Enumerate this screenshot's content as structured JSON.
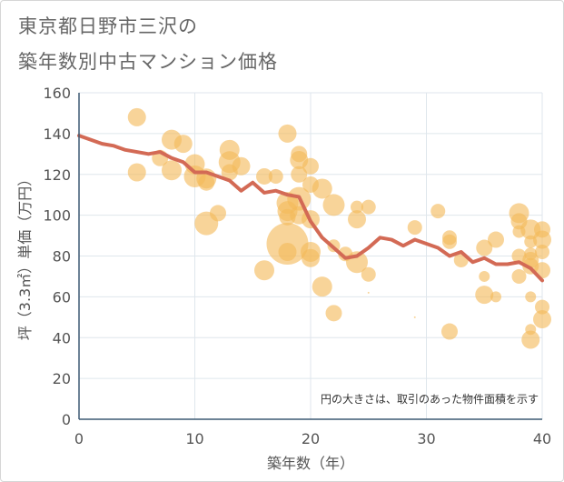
{
  "title_lines": [
    "東京都日野市三沢の",
    "築年数別中古マンション価格"
  ],
  "chart_data": {
    "type": "scatter",
    "title": "東京都日野市三沢の築年数別中古マンション価格",
    "xlabel": "築年数（年）",
    "ylabel": "坪（3.3㎡）単価（万円）",
    "xlim": [
      0,
      40
    ],
    "ylim": [
      0,
      160
    ],
    "x_ticks": [
      0,
      10,
      20,
      30,
      40
    ],
    "y_ticks": [
      0,
      20,
      40,
      60,
      80,
      100,
      120,
      140,
      160
    ],
    "grid": true,
    "note": "円の大きさは、取引のあった物件面積を示す",
    "colors": {
      "bubble": "#f4b95a",
      "line": "#d36a55",
      "grid": "#dfe6ec",
      "axis": "#3d5a73"
    },
    "series": [
      {
        "type": "line",
        "x": [
          0,
          1,
          2,
          3,
          4,
          5,
          6,
          7,
          8,
          9,
          10,
          11,
          12,
          13,
          14,
          15,
          16,
          17,
          18,
          19,
          20,
          21,
          22,
          23,
          24,
          25,
          26,
          27,
          28,
          29,
          30,
          31,
          32,
          33,
          34,
          35,
          36,
          37,
          38,
          39,
          40
        ],
        "y": [
          139,
          137,
          135,
          134,
          132,
          131,
          130,
          131,
          128,
          126,
          121,
          121,
          119,
          117,
          112,
          116,
          111,
          112,
          110,
          109,
          97,
          89,
          84,
          79,
          80,
          84,
          89,
          88,
          85,
          88,
          86,
          84,
          80,
          82,
          77,
          79,
          76,
          76,
          77,
          74,
          68
        ]
      },
      {
        "type": "bubble",
        "points": [
          [
            5,
            148,
            10
          ],
          [
            5,
            121,
            10
          ],
          [
            7,
            128,
            9
          ],
          [
            8,
            137,
            11
          ],
          [
            8,
            122,
            11
          ],
          [
            9,
            135,
            10
          ],
          [
            10,
            125,
            11
          ],
          [
            10,
            119,
            12
          ],
          [
            11,
            118,
            11
          ],
          [
            11,
            116,
            9
          ],
          [
            11,
            96,
            13
          ],
          [
            12,
            101,
            9
          ],
          [
            13,
            132,
            11
          ],
          [
            13,
            126,
            12
          ],
          [
            13,
            121,
            9
          ],
          [
            14,
            124,
            10
          ],
          [
            16,
            119,
            9
          ],
          [
            16,
            73,
            11
          ],
          [
            17,
            119,
            8
          ],
          [
            18,
            140,
            10
          ],
          [
            18,
            106,
            12
          ],
          [
            18,
            102,
            11
          ],
          [
            18,
            99,
            9
          ],
          [
            18,
            86,
            23
          ],
          [
            18,
            82,
            10
          ],
          [
            19,
            130,
            9
          ],
          [
            19,
            127,
            10
          ],
          [
            19,
            120,
            9
          ],
          [
            19,
            108,
            13
          ],
          [
            19,
            100,
            10
          ],
          [
            20,
            124,
            9
          ],
          [
            20,
            115,
            9
          ],
          [
            20,
            98,
            10
          ],
          [
            20,
            82,
            11
          ],
          [
            20,
            79,
            10
          ],
          [
            21,
            113,
            11
          ],
          [
            21,
            65,
            11
          ],
          [
            22,
            105,
            12
          ],
          [
            22,
            85,
            7
          ],
          [
            22,
            52,
            9
          ],
          [
            23,
            81,
            8
          ],
          [
            24,
            104,
            7
          ],
          [
            24,
            98,
            10
          ],
          [
            24,
            77,
            12
          ],
          [
            25,
            104,
            8
          ],
          [
            25,
            71,
            8
          ],
          [
            25,
            62,
            1
          ],
          [
            29,
            94,
            8
          ],
          [
            29,
            50,
            1
          ],
          [
            31,
            102,
            8
          ],
          [
            32,
            89,
            8
          ],
          [
            32,
            87,
            8
          ],
          [
            32,
            43,
            9
          ],
          [
            33,
            78,
            8
          ],
          [
            35,
            84,
            9
          ],
          [
            35,
            61,
            10
          ],
          [
            35,
            70,
            6
          ],
          [
            36,
            88,
            9
          ],
          [
            36,
            60,
            6
          ],
          [
            38,
            101,
            11
          ],
          [
            38,
            97,
            9
          ],
          [
            38,
            92,
            7
          ],
          [
            38,
            80,
            8
          ],
          [
            38,
            70,
            8
          ],
          [
            39,
            87,
            7
          ],
          [
            39,
            60,
            6
          ],
          [
            39,
            44,
            6
          ],
          [
            39,
            93,
            11
          ],
          [
            39,
            81,
            7
          ],
          [
            39,
            78,
            9
          ],
          [
            39,
            75,
            9
          ],
          [
            39,
            39,
            10
          ],
          [
            40,
            93,
            9
          ],
          [
            40,
            88,
            10
          ],
          [
            40,
            82,
            8
          ],
          [
            40,
            73,
            9
          ],
          [
            40,
            55,
            8
          ],
          [
            40,
            49,
            10
          ]
        ]
      }
    ]
  }
}
